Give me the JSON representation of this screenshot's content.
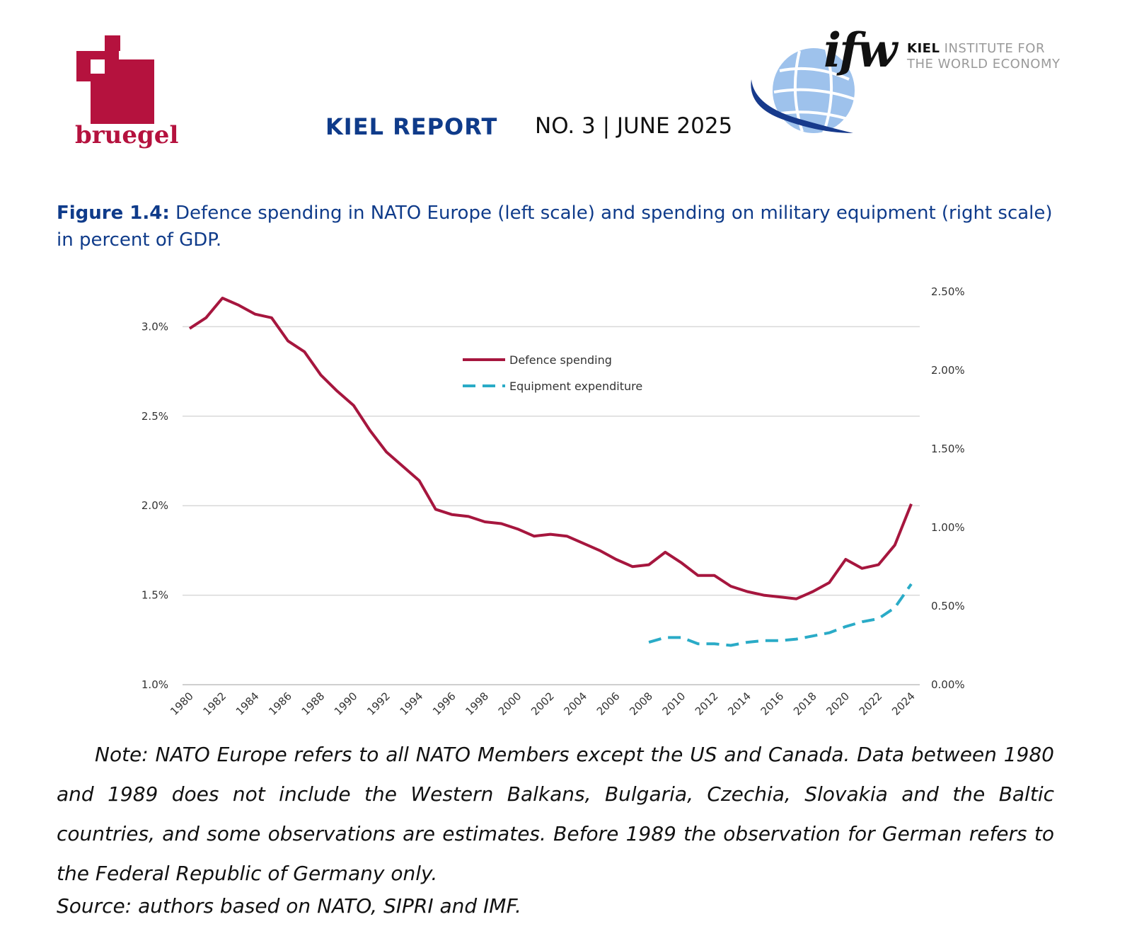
{
  "header": {
    "publisher_left": "bruegel",
    "report_title": "KIEL REPORT",
    "report_number": "NO. 3 | JUNE 2025",
    "publisher_right": {
      "mark": "ifw",
      "line1_bold": "KIEL",
      "line1_rest": "INSTITUTE FOR",
      "line2": "THE WORLD ECONOMY"
    },
    "colors": {
      "bruegel_red": "#b5123e",
      "kiel_blue": "#0f3b8a",
      "globe_light": "#9ec2ec",
      "globe_dark": "#173a8c"
    }
  },
  "figure": {
    "label": "Figure 1.4:",
    "caption": "Defence spending in NATO Europe (left scale) and spending on military equipment (right scale) in percent of GDP."
  },
  "chart_data": {
    "type": "line",
    "x": [
      1980,
      1981,
      1982,
      1983,
      1984,
      1985,
      1986,
      1987,
      1988,
      1989,
      1990,
      1991,
      1992,
      1993,
      1994,
      1995,
      1996,
      1997,
      1998,
      1999,
      2000,
      2001,
      2002,
      2003,
      2004,
      2005,
      2006,
      2007,
      2008,
      2009,
      2010,
      2011,
      2012,
      2013,
      2014,
      2015,
      2016,
      2017,
      2018,
      2019,
      2020,
      2021,
      2022,
      2023,
      2024
    ],
    "x_tick_labels": [
      "1980",
      "1982",
      "1984",
      "1986",
      "1988",
      "1990",
      "1992",
      "1994",
      "1996",
      "1998",
      "2000",
      "2002",
      "2004",
      "2006",
      "2008",
      "2010",
      "2012",
      "2014",
      "2016",
      "2018",
      "2020",
      "2022",
      "2024"
    ],
    "y_left": {
      "ylim": [
        1.0,
        3.25
      ],
      "ticks": [
        1.0,
        1.5,
        2.0,
        2.5,
        3.0
      ],
      "tick_labels": [
        "1.0%",
        "1.5%",
        "2.0%",
        "2.5%",
        "3.0%"
      ]
    },
    "y_right": {
      "ylim": [
        0.0,
        2.5
      ],
      "ticks": [
        0.0,
        0.5,
        1.0,
        1.5,
        2.0,
        2.5
      ],
      "tick_labels": [
        "0.00%",
        "0.50%",
        "1.00%",
        "1.50%",
        "2.00%",
        "2.50%"
      ]
    },
    "grid": "horizontal",
    "legend_placement": "top-center",
    "series": [
      {
        "name": "Defence spending",
        "axis": "left",
        "color": "#a6163e",
        "style": "solid",
        "x": [
          1980,
          1981,
          1982,
          1983,
          1984,
          1985,
          1986,
          1987,
          1988,
          1989,
          1990,
          1991,
          1992,
          1993,
          1994,
          1995,
          1996,
          1997,
          1998,
          1999,
          2000,
          2001,
          2002,
          2003,
          2004,
          2005,
          2006,
          2007,
          2008,
          2009,
          2010,
          2011,
          2012,
          2013,
          2014,
          2015,
          2016,
          2017,
          2018,
          2019,
          2020,
          2021,
          2022,
          2023,
          2024
        ],
        "values": [
          2.99,
          3.05,
          3.16,
          3.12,
          3.07,
          3.05,
          2.92,
          2.86,
          2.73,
          2.64,
          2.56,
          2.42,
          2.3,
          2.22,
          2.14,
          1.98,
          1.95,
          1.94,
          1.91,
          1.9,
          1.87,
          1.83,
          1.84,
          1.83,
          1.79,
          1.75,
          1.7,
          1.66,
          1.67,
          1.74,
          1.68,
          1.61,
          1.61,
          1.55,
          1.52,
          1.5,
          1.49,
          1.48,
          1.52,
          1.57,
          1.7,
          1.65,
          1.67,
          1.78,
          2.01
        ]
      },
      {
        "name": "Equipment expenditure",
        "axis": "right",
        "color": "#2aabc7",
        "style": "dashed",
        "x": [
          2008,
          2009,
          2010,
          2011,
          2012,
          2013,
          2014,
          2015,
          2016,
          2017,
          2018,
          2019,
          2020,
          2021,
          2022,
          2023,
          2024
        ],
        "values": [
          0.27,
          0.3,
          0.3,
          0.26,
          0.26,
          0.25,
          0.27,
          0.28,
          0.28,
          0.29,
          0.31,
          0.33,
          0.37,
          0.4,
          0.42,
          0.49,
          0.64
        ]
      }
    ]
  },
  "note": "Note: NATO Europe refers to all NATO Members except the US and Canada. Data between 1980 and 1989 does not include the Western Balkans, Bulgaria, Czechia, Slovakia and the Baltic countries, and some observations are estimates. Before 1989 the observation for German refers to the Federal Republic of Germany only.",
  "source": "Source: authors based on NATO, SIPRI and IMF."
}
